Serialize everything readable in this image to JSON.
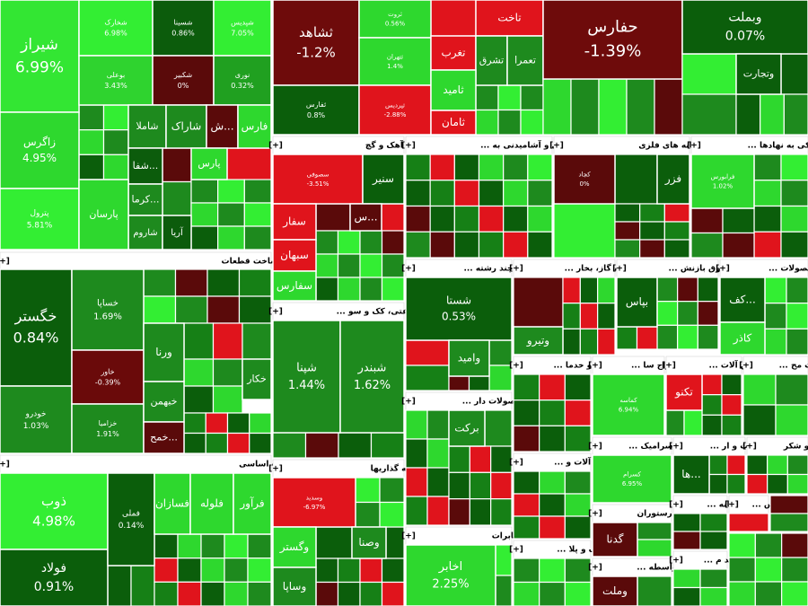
{
  "chart_data": {
    "type": "treemap",
    "sectors": [
      {
        "tiles": [
          {
            "name": "شیراز",
            "change": 6.99,
            "label": "6.99%",
            "color": "#33e633"
          },
          {
            "name": "زاگرس",
            "change": 4.95,
            "label": "4.95%",
            "color": "#2ed82e"
          },
          {
            "name": "پترول",
            "change": 5.81,
            "label": "5.81%",
            "color": "#33ee33"
          },
          {
            "name": "شخارک",
            "change": 6.98,
            "label": "6.98%",
            "color": "#33ee33"
          },
          {
            "name": "شسینا",
            "change": 0.86,
            "label": "0.86%",
            "color": "#0c5c0c"
          },
          {
            "name": "شپدیس",
            "change": 7.05,
            "label": "7.05%",
            "color": "#33ee33"
          },
          {
            "name": "بوعلی",
            "change": 3.43,
            "label": "3.43%",
            "color": "#2fd32f"
          },
          {
            "name": "شکبیر",
            "change": 0,
            "label": "0%",
            "color": "#5a0a0a"
          },
          {
            "name": "نوری",
            "change": 0.32,
            "label": "0.32%",
            "color": "#20a020"
          },
          {
            "name": "شاملا",
            "color": "#1e8a1e"
          },
          {
            "name": "شاراک",
            "color": "#1e8a1e"
          },
          {
            "name": "ش...",
            "color": "#5a0a0a"
          },
          {
            "name": "فارس",
            "color": "#2ed82e"
          },
          {
            "name": "شفا...",
            "color": "#0c5c0c"
          },
          {
            "name": "کرما...",
            "color": "#1e8a1e"
          },
          {
            "name": "شاروم",
            "color": "#1e8a1e"
          },
          {
            "name": "پارسان",
            "color": "#2ed82e"
          },
          {
            "name": "پارس",
            "color": "#2ed82e"
          },
          {
            "name": "آریا",
            "color": "#0c5c0c"
          }
        ]
      },
      {
        "name": "خودرو و ساخت قطعات",
        "toggle": "[+]",
        "tiles": [
          {
            "name": "خگستر",
            "change": 0.84,
            "label": "0.84%",
            "color": "#0b5e0b"
          },
          {
            "name": "خودرو",
            "change": 1.03,
            "label": "1.03%",
            "color": "#1e8a1e"
          },
          {
            "name": "خساپا",
            "change": 1.69,
            "label": "1.69%",
            "color": "#1e8a1e"
          },
          {
            "name": "خاور",
            "change": -0.39,
            "label": "-0.39%",
            "color": "#6a0a0a"
          },
          {
            "name": "خزامیا",
            "change": 1.91,
            "label": "1.91%",
            "color": "#1e8a1e"
          },
          {
            "name": "ورنا",
            "color": "#1e8a1e"
          },
          {
            "name": "خبهمن",
            "color": "#1e8a1e"
          },
          {
            "name": "خمح...",
            "color": "#5a0a0a"
          },
          {
            "name": "خکار",
            "color": "#1e8a1e"
          }
        ]
      },
      {
        "name": "فلزات اساسی",
        "toggle": "[+]",
        "tiles": [
          {
            "name": "ذوب",
            "change": 4.98,
            "label": "4.98%",
            "color": "#33ee33"
          },
          {
            "name": "فولاد",
            "change": 0.91,
            "label": "0.91%",
            "color": "#0b5e0b"
          },
          {
            "name": "فملی",
            "change": 0.14,
            "label": "0.14%",
            "color": "#0b5e0b"
          },
          {
            "name": "فسازان",
            "color": "#2ed82e"
          },
          {
            "name": "فلوله",
            "color": "#2ed82e"
          },
          {
            "name": "فرآور",
            "color": "#2ed82e"
          }
        ]
      },
      {
        "tiles": [
          {
            "name": "ثشاهد",
            "change": -1.2,
            "label": "-1.2%",
            "color": "#6e0b0b"
          },
          {
            "name": "ثفارس",
            "change": 0.8,
            "label": "0.8%",
            "color": "#0b5e0b"
          },
          {
            "name": "ثروت",
            "change": 0.56,
            "label": "0.56%",
            "color": "#2ed82e"
          },
          {
            "name": "ثتهران",
            "change": 1.4,
            "label": "1.4%",
            "color": "#2ed82e"
          },
          {
            "name": "ثپردیس",
            "change": -2.88,
            "label": "-2.88%",
            "color": "#e0141c"
          },
          {
            "name": "تاخت",
            "color": "#e0141c"
          },
          {
            "name": "تغرب",
            "color": "#e0141c"
          },
          {
            "name": "تشرق",
            "color": "#1e8a1e"
          },
          {
            "name": "تعمرا",
            "color": "#1e8a1e"
          },
          {
            "name": "ثامید",
            "color": "#2ed82e"
          },
          {
            "name": "ثامان",
            "color": "#e0141c"
          }
        ]
      },
      {
        "tiles": [
          {
            "name": "حفارس",
            "change": -1.39,
            "label": "-1.39%",
            "color": "#6e0b0b"
          }
        ]
      },
      {
        "tiles": [
          {
            "name": "وبملت",
            "change": 0.07,
            "label": "0.07%",
            "color": "#0b5e0b"
          },
          {
            "name": "وتجارت",
            "color": "#0b5e0b"
          }
        ]
      },
      {
        "name": "سیمان، آهک و گچ",
        "toggle": "[+]",
        "tiles": [
          {
            "name": "سصوفی",
            "change": -3.51,
            "label": "-3.51%",
            "color": "#e0141c"
          },
          {
            "name": "سنیر",
            "color": "#0b5e0b"
          },
          {
            "name": "سفار",
            "color": "#e0141c"
          },
          {
            "name": "س...",
            "color": "#5a0a0a"
          },
          {
            "name": "سبهان",
            "color": "#e0141c"
          },
          {
            "name": "سفارس",
            "color": "#2ed82e"
          }
        ]
      },
      {
        "name": "محصولات غذایی و آشامیدنی به ...",
        "toggle": "[+]",
        "tiles": []
      },
      {
        "name": "استخراج کانه های فلزی",
        "toggle": "[+]",
        "tiles": [
          {
            "name": "کچاد",
            "change": 0,
            "label": "0%",
            "color": "#5a0a0a"
          },
          {
            "name": "فزر",
            "color": "#0b5e0b"
          }
        ]
      },
      {
        "name": "فعالیتهای کمکی به نهادها ...",
        "toggle": "[+]",
        "tiles": [
          {
            "name": "فرابورس",
            "change": 1.02,
            "label": "1.02%",
            "color": "#2ed82e"
          }
        ]
      },
      {
        "name": "فراورده های نفتی، کک و سو ...",
        "toggle": "[+]",
        "tiles": [
          {
            "name": "شپنا",
            "change": 1.44,
            "label": "1.44%",
            "color": "#1e8a1e"
          },
          {
            "name": "شبندر",
            "change": 1.62,
            "label": "1.62%",
            "color": "#1e8a1e"
          }
        ]
      },
      {
        "name": "سرمایه گذاریها",
        "toggle": "[+]",
        "tiles": [
          {
            "name": "وسدید",
            "change": -6.97,
            "label": "-6.97%",
            "color": "#e0141c"
          },
          {
            "name": "وگستر",
            "color": "#2ed82e"
          },
          {
            "name": "وصنا",
            "color": "#1e8a1e"
          },
          {
            "name": "وساپا",
            "color": "#1e8a1e"
          }
        ]
      },
      {
        "name": "شرکتهای چند رشته ...",
        "toggle": "[+]",
        "tiles": [
          {
            "name": "شستا",
            "change": 0.53,
            "label": "0.53%",
            "color": "#0b5e0b"
          },
          {
            "name": "وامید",
            "color": "#1e8a1e"
          }
        ]
      },
      {
        "name": "مواد و محصولات دار ...",
        "toggle": "[+]",
        "tiles": [
          {
            "name": "برکت",
            "color": "#1e8a1e"
          }
        ]
      },
      {
        "name": "مخابرات",
        "toggle": "[+]",
        "tiles": [
          {
            "name": "اخابر",
            "change": 2.25,
            "label": "2.25%",
            "color": "#2ed82e"
          }
        ]
      },
      {
        "name": "عرضه برق، گاز، بخار ...",
        "toggle": "[+]",
        "tiles": [
          {
            "name": "وتیرو",
            "color": "#1e8a1e"
          }
        ]
      },
      {
        "name": "زراعت و خدما ...",
        "toggle": "[+]",
        "tiles": []
      },
      {
        "name": "ماشین آلات و ...",
        "toggle": "[+]",
        "tiles": []
      },
      {
        "name": "لاستیک و پلا ...",
        "toggle": "[+]",
        "tiles": []
      },
      {
        "name": "بیمه وصندوق بازنش ...",
        "toggle": "[+]",
        "tiles": [
          {
            "name": "بپاس",
            "color": "#0b5e0b"
          }
        ]
      },
      {
        "name": "استخراج سا ...",
        "toggle": "[+]",
        "tiles": [
          {
            "name": "کماسه",
            "change": 6.94,
            "label": "6.94%",
            "color": "#2ed82e"
          }
        ]
      },
      {
        "name": "ماشین آلات ...",
        "toggle": "[+]",
        "tiles": [
          {
            "name": "تکنو",
            "color": "#e0141c"
          }
        ]
      },
      {
        "name": "ساخت مح ...",
        "toggle": "[+]",
        "tiles": []
      },
      {
        "name": "سایر محصولات ...",
        "toggle": "[+]",
        "tiles": [
          {
            "name": "کف...",
            "color": "#0b5e0b"
          },
          {
            "name": "کاذر",
            "color": "#2ed82e"
          }
        ]
      },
      {
        "name": "کاشی و سرامیک ...",
        "toggle": "[+]",
        "tiles": [
          {
            "name": "کسرام",
            "change": 6.95,
            "label": "6.95%",
            "color": "#2ed82e"
          }
        ]
      },
      {
        "name": "اطلاعات و ار ...",
        "toggle": "[+]",
        "tiles": [
          {
            "name": "ها...",
            "color": "#0b5e0b"
          }
        ]
      },
      {
        "name": "قند و شکر",
        "toggle": "[+]",
        "tiles": []
      },
      {
        "name": "هتل و رستوران",
        "toggle": "[+]",
        "tiles": [
          {
            "name": "گدنا",
            "color": "#5a0a0a"
          }
        ]
      },
      {
        "name": "سایر واسطه ...",
        "toggle": "[+]",
        "tiles": [
          {
            "name": "وملت",
            "color": "#5a0a0a"
          }
        ]
      },
      {
        "name": "رایانه ...",
        "toggle": "[+]",
        "tiles": []
      },
      {
        "name": "اس ...",
        "toggle": "[+]",
        "tiles": []
      },
      {
        "name": "تولید م ...",
        "toggle": "[+]",
        "tiles": []
      },
      {
        "tiles": []
      },
      {
        "tiles": []
      }
    ]
  }
}
